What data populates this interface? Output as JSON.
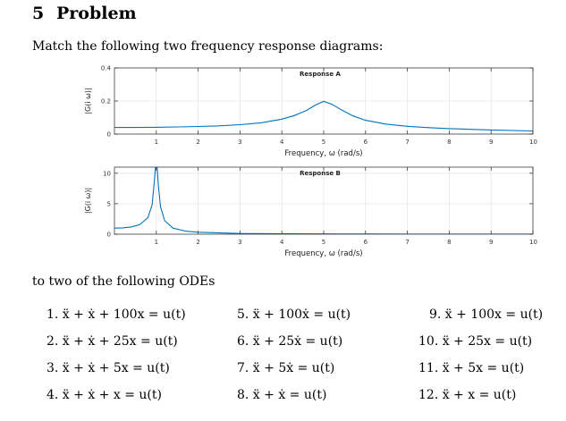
{
  "section": {
    "number": "5",
    "title": "Problem"
  },
  "intro_text": "Match the following two frequency response diagrams:",
  "odes_intro": "to two of the following ODEs",
  "chart_data": [
    {
      "type": "line",
      "title": "Response A",
      "xlabel": "Frequency,  ω (rad/s)",
      "ylabel": "|G(i ω)|",
      "xlim": [
        0,
        10
      ],
      "ylim": [
        0,
        0.4
      ],
      "xticks": [
        "1",
        "2",
        "3",
        "4",
        "5",
        "6",
        "7",
        "8",
        "9",
        "10"
      ],
      "yticks": [
        "0",
        "0.2",
        "0.4"
      ],
      "grid": true,
      "series": [
        {
          "x": [
            0,
            0.5,
            1,
            1.5,
            2,
            2.5,
            3,
            3.5,
            4,
            4.3,
            4.6,
            4.8,
            5,
            5.2,
            5.4,
            5.7,
            6,
            6.5,
            7,
            7.5,
            8,
            9,
            10
          ],
          "y": [
            0.04,
            0.04,
            0.041,
            0.043,
            0.046,
            0.05,
            0.057,
            0.068,
            0.09,
            0.112,
            0.145,
            0.175,
            0.198,
            0.18,
            0.15,
            0.11,
            0.083,
            0.06,
            0.047,
            0.039,
            0.033,
            0.025,
            0.019
          ]
        }
      ]
    },
    {
      "type": "line",
      "title": "Response B",
      "xlabel": "Frequency,  ω (rad/s)",
      "ylabel": "|G(i ω)|",
      "xlim": [
        0,
        10
      ],
      "ylim": [
        0,
        11
      ],
      "xticks": [
        "1",
        "2",
        "3",
        "4",
        "5",
        "6",
        "7",
        "8",
        "9",
        "10"
      ],
      "yticks": [
        "0",
        "5",
        "10"
      ],
      "grid": true,
      "series": [
        {
          "x": [
            0,
            0.2,
            0.4,
            0.6,
            0.8,
            0.9,
            0.95,
            0.98,
            1.0,
            1.02,
            1.05,
            1.1,
            1.2,
            1.4,
            1.7,
            2,
            3,
            4,
            5,
            6,
            7,
            8,
            9,
            10
          ],
          "y": [
            1.0,
            1.04,
            1.19,
            1.56,
            2.7,
            4.8,
            8.5,
            11,
            11,
            11,
            8.0,
            4.5,
            2.2,
            1.0,
            0.5,
            0.33,
            0.12,
            0.067,
            0.042,
            0.029,
            0.021,
            0.016,
            0.013,
            0.01
          ]
        }
      ]
    }
  ],
  "odes": [
    "1.  ẍ + ẋ + 100x = u(t)",
    "2.  ẍ + ẋ + 25x = u(t)",
    "3.  ẍ + ẋ + 5x = u(t)",
    "4.  ẍ + ẋ + x = u(t)",
    "5.  ẍ + 100ẋ = u(t)",
    "6.  ẍ + 25ẋ = u(t)",
    "7.  ẍ + 5ẋ = u(t)",
    "8.  ẍ + ẋ = u(t)",
    "9.  ẍ + 100x = u(t)",
    "10.  ẍ + 25x = u(t)",
    "11.  ẍ + 5x = u(t)",
    "12.  ẍ + x = u(t)"
  ],
  "colors": {
    "line": "#0072BD",
    "axis": "#262626",
    "grid": "#e6e6e6"
  }
}
